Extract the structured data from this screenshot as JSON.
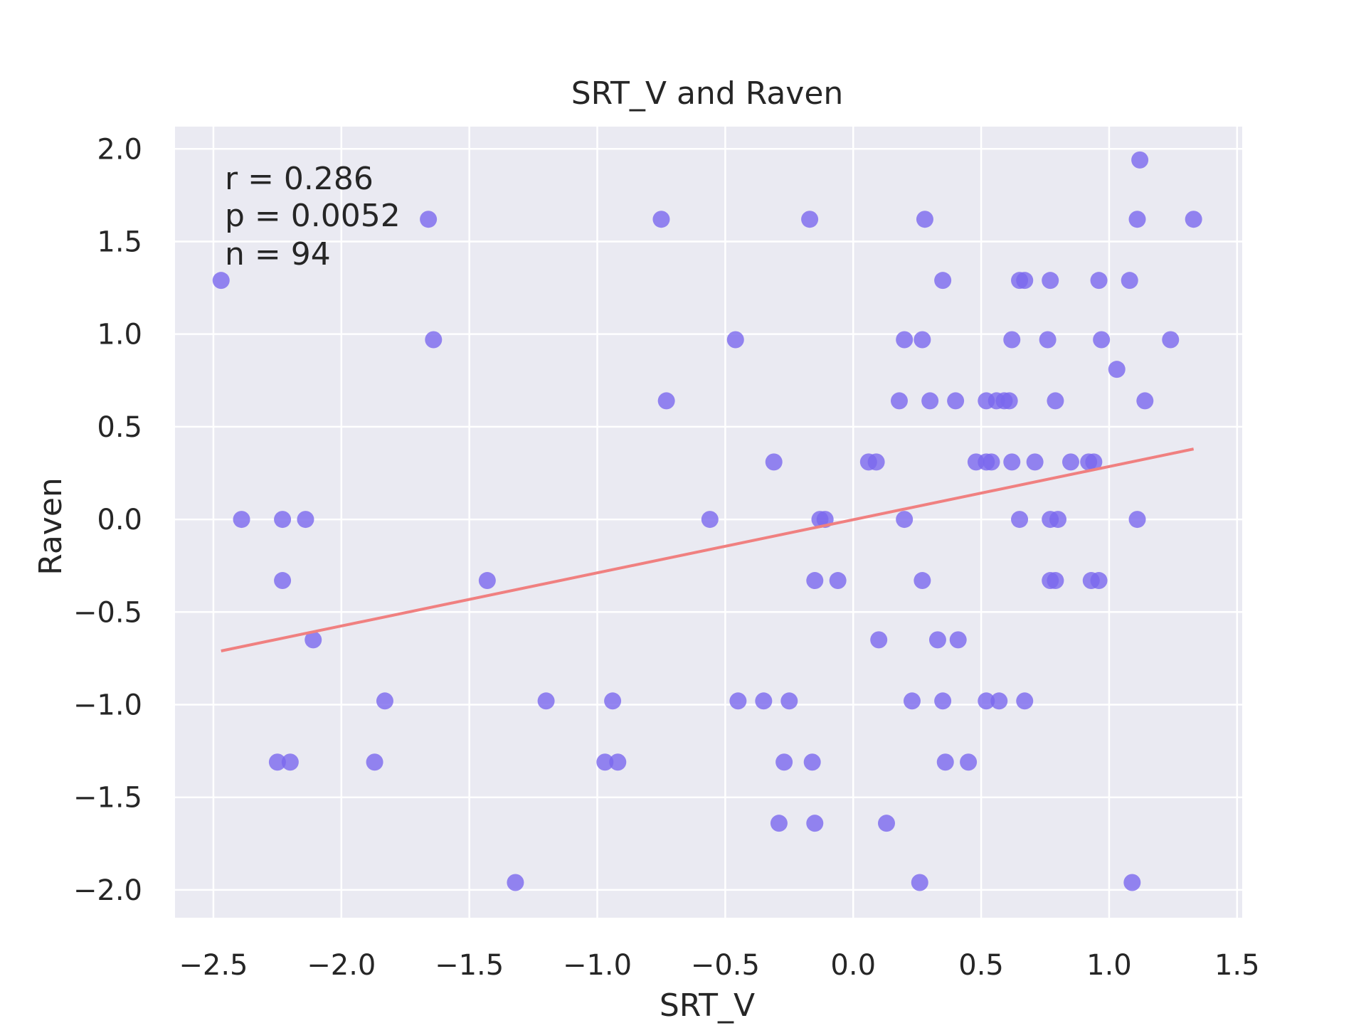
{
  "chart_data": {
    "type": "scatter",
    "title": "SRT_V and Raven",
    "xlabel": "SRT_V",
    "ylabel": "Raven",
    "xlim": [
      -2.65,
      1.52
    ],
    "ylim": [
      -2.15,
      2.12
    ],
    "xticks": [
      -2.5,
      -2.0,
      -1.5,
      -1.0,
      -0.5,
      0.0,
      0.5,
      1.0,
      1.5
    ],
    "xtick_labels": [
      "−2.5",
      "−2.0",
      "−1.5",
      "−1.0",
      "−0.5",
      "0.0",
      "0.5",
      "1.0",
      "1.5"
    ],
    "yticks": [
      2.0,
      1.5,
      1.0,
      0.5,
      0.0,
      -0.5,
      -1.0,
      -1.5,
      -2.0
    ],
    "ytick_labels": [
      "2.0",
      "1.5",
      "1.0",
      "0.5",
      "0.0",
      "−0.5",
      "−1.0",
      "−1.5",
      "−2.0"
    ],
    "grid": true,
    "annotation": [
      "r = 0.286",
      "p = 0.0052",
      "n = 94"
    ],
    "colors": {
      "points": "#7b68ee",
      "fit_line": "#f08080",
      "plot_background": "#eaeaf2",
      "grid": "#ffffff"
    },
    "points": [
      [
        -2.47,
        1.29
      ],
      [
        -2.39,
        0.0
      ],
      [
        -2.23,
        0.0
      ],
      [
        -2.14,
        0.0
      ],
      [
        -2.23,
        -0.33
      ],
      [
        -2.11,
        -0.65
      ],
      [
        -2.25,
        -1.31
      ],
      [
        -2.2,
        -1.31
      ],
      [
        -1.87,
        -1.31
      ],
      [
        -1.83,
        -0.98
      ],
      [
        -1.66,
        1.62
      ],
      [
        -1.64,
        0.97
      ],
      [
        -1.43,
        -0.33
      ],
      [
        -1.32,
        -1.96
      ],
      [
        -1.2,
        -0.98
      ],
      [
        -0.97,
        -1.31
      ],
      [
        -0.92,
        -1.31
      ],
      [
        -0.94,
        -0.98
      ],
      [
        -0.75,
        1.62
      ],
      [
        -0.73,
        0.64
      ],
      [
        -0.56,
        0.0
      ],
      [
        -0.46,
        0.97
      ],
      [
        -0.45,
        -0.98
      ],
      [
        -0.35,
        -0.98
      ],
      [
        -0.25,
        -0.98
      ],
      [
        -0.31,
        0.31
      ],
      [
        -0.27,
        -1.31
      ],
      [
        -0.29,
        -1.64
      ],
      [
        -0.17,
        1.62
      ],
      [
        -0.15,
        -0.33
      ],
      [
        -0.16,
        -1.31
      ],
      [
        -0.15,
        -1.64
      ],
      [
        -0.13,
        0.0
      ],
      [
        -0.11,
        0.0
      ],
      [
        -0.06,
        -0.33
      ],
      [
        0.06,
        0.31
      ],
      [
        0.09,
        0.31
      ],
      [
        0.1,
        -0.65
      ],
      [
        0.13,
        -1.64
      ],
      [
        0.18,
        0.64
      ],
      [
        0.2,
        0.97
      ],
      [
        0.2,
        0.0
      ],
      [
        0.23,
        -0.98
      ],
      [
        0.27,
        -0.33
      ],
      [
        0.27,
        0.97
      ],
      [
        0.28,
        1.62
      ],
      [
        0.26,
        -1.96
      ],
      [
        0.3,
        0.64
      ],
      [
        0.33,
        -0.65
      ],
      [
        0.35,
        1.29
      ],
      [
        0.35,
        -0.98
      ],
      [
        0.36,
        -1.31
      ],
      [
        0.4,
        0.64
      ],
      [
        0.41,
        -0.65
      ],
      [
        0.45,
        -1.31
      ],
      [
        0.48,
        0.31
      ],
      [
        0.52,
        0.31
      ],
      [
        0.54,
        0.31
      ],
      [
        0.52,
        0.64
      ],
      [
        0.56,
        0.64
      ],
      [
        0.59,
        0.64
      ],
      [
        0.61,
        0.64
      ],
      [
        0.52,
        -0.98
      ],
      [
        0.57,
        -0.98
      ],
      [
        0.62,
        0.97
      ],
      [
        0.62,
        0.31
      ],
      [
        0.65,
        1.29
      ],
      [
        0.67,
        1.29
      ],
      [
        0.65,
        0.0
      ],
      [
        0.67,
        -0.98
      ],
      [
        0.71,
        0.31
      ],
      [
        0.77,
        1.29
      ],
      [
        0.76,
        0.97
      ],
      [
        0.77,
        0.0
      ],
      [
        0.8,
        0.0
      ],
      [
        0.77,
        -0.33
      ],
      [
        0.79,
        -0.33
      ],
      [
        0.79,
        0.64
      ],
      [
        0.85,
        0.31
      ],
      [
        0.92,
        0.31
      ],
      [
        0.94,
        0.31
      ],
      [
        0.93,
        -0.33
      ],
      [
        0.96,
        -0.33
      ],
      [
        0.96,
        1.29
      ],
      [
        0.97,
        0.97
      ],
      [
        1.03,
        0.81
      ],
      [
        1.08,
        1.29
      ],
      [
        1.11,
        0.0
      ],
      [
        1.12,
        1.94
      ],
      [
        1.11,
        1.62
      ],
      [
        1.14,
        0.64
      ],
      [
        1.24,
        0.97
      ],
      [
        1.33,
        1.62
      ],
      [
        1.09,
        -1.96
      ]
    ],
    "fit_line": {
      "x": [
        -2.47,
        1.33
      ],
      "y": [
        -0.71,
        0.38
      ]
    }
  }
}
